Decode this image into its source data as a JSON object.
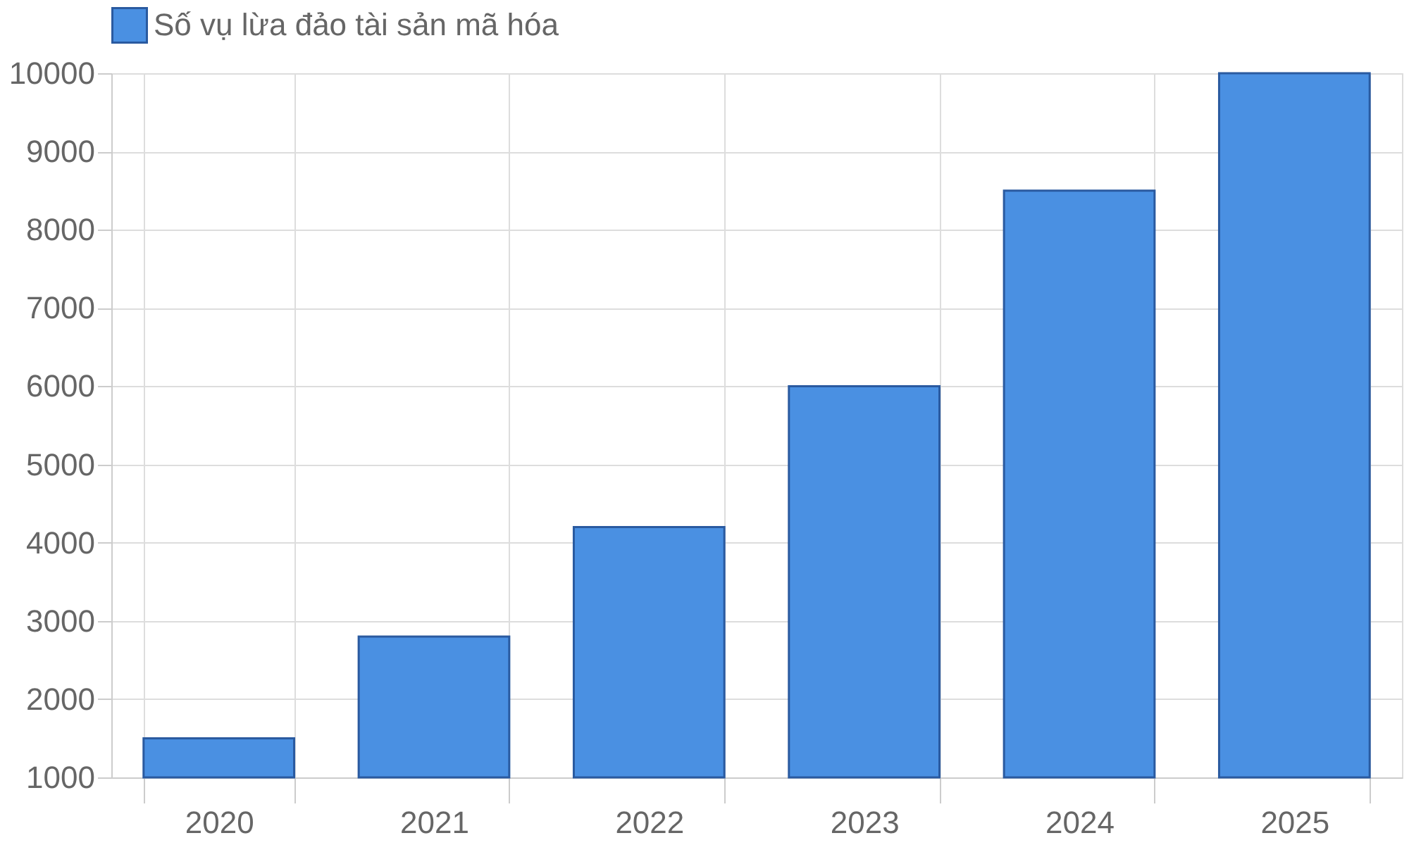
{
  "chart_data": {
    "type": "bar",
    "categories": [
      "2020",
      "2021",
      "2022",
      "2023",
      "2024",
      "2025"
    ],
    "series": [
      {
        "name": "Số vụ lừa đảo tài sản mã hóa",
        "color": "#4a90e2",
        "values": [
          1500,
          2800,
          4200,
          6000,
          8500,
          10000
        ]
      }
    ],
    "ylim": [
      1000,
      10000
    ],
    "yticks": [
      1000,
      2000,
      3000,
      4000,
      5000,
      6000,
      7000,
      8000,
      9000,
      10000
    ],
    "grid": true,
    "legend": "top"
  }
}
